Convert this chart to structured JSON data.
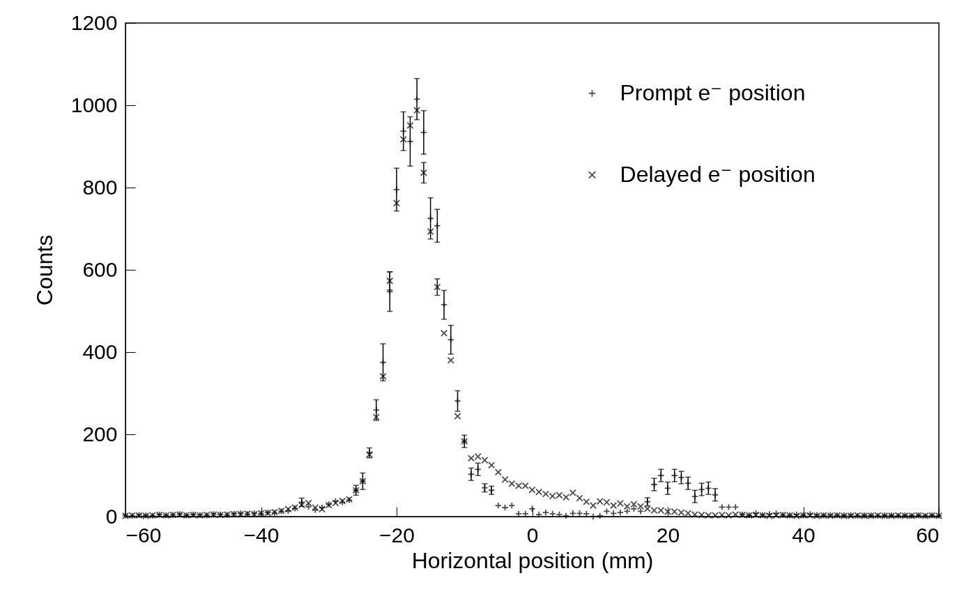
{
  "chart_data": {
    "type": "scatter",
    "xlabel": "Horizontal position (mm)",
    "ylabel": "Counts",
    "x": [
      -60,
      -59,
      -58,
      -57,
      -56,
      -55,
      -54,
      -53,
      -52,
      -51,
      -50,
      -49,
      -48,
      -47,
      -46,
      -45,
      -44,
      -43,
      -42,
      -41,
      -40,
      -39,
      -38,
      -37,
      -36,
      -35,
      -34,
      -33,
      -32,
      -31,
      -30,
      -29,
      -28,
      -27,
      -26,
      -25,
      -24,
      -23,
      -22,
      -21,
      -20,
      -19,
      -18,
      -17,
      -16,
      -15,
      -14,
      -13,
      -12,
      -11,
      -10,
      -9,
      -8,
      -7,
      -6,
      -5,
      -4,
      -3,
      -2,
      -1,
      0,
      1,
      2,
      3,
      4,
      5,
      6,
      7,
      8,
      9,
      10,
      11,
      12,
      13,
      14,
      15,
      16,
      17,
      18,
      19,
      20,
      21,
      22,
      23,
      24,
      25,
      26,
      27,
      28,
      29,
      30,
      31,
      32,
      33,
      34,
      35,
      36,
      37,
      38,
      39,
      40,
      41,
      42,
      43,
      44,
      45,
      46,
      47,
      48,
      49,
      50,
      51,
      52,
      53,
      54,
      55,
      56,
      57,
      58,
      59,
      60
    ],
    "series": [
      {
        "name": "Prompt e⁻ position",
        "color": "#000000",
        "marker": "plus",
        "values": [
          3,
          2,
          4,
          3,
          2,
          5,
          3,
          4,
          6,
          3,
          5,
          4,
          3,
          6,
          5,
          4,
          7,
          8,
          6,
          8,
          7,
          10,
          9,
          13,
          14,
          20,
          35,
          24,
          16,
          22,
          30,
          38,
          35,
          40,
          64,
          86,
          155,
          259,
          375,
          547,
          795,
          937,
          912,
          1015,
          934,
          725,
          707,
          515,
          430,
          281,
          183,
          103,
          115,
          70,
          64,
          27,
          22,
          27,
          7,
          7,
          19,
          5,
          10,
          7,
          5,
          2,
          8,
          8,
          7,
          0,
          2,
          13,
          8,
          10,
          13,
          19,
          13,
          36,
          78,
          100,
          69,
          100,
          95,
          81,
          49,
          66,
          69,
          53,
          23,
          23,
          23,
          5,
          3,
          8,
          4,
          6,
          8,
          4,
          3,
          5,
          3,
          6,
          4,
          3,
          4,
          3,
          3,
          4,
          2,
          3,
          3,
          2,
          3,
          3,
          2,
          3,
          2,
          3,
          2,
          3,
          2
        ],
        "errors": [
          null,
          null,
          null,
          null,
          null,
          null,
          null,
          null,
          null,
          null,
          null,
          null,
          null,
          null,
          null,
          null,
          null,
          null,
          null,
          null,
          null,
          null,
          null,
          null,
          null,
          null,
          10,
          null,
          null,
          null,
          null,
          null,
          null,
          null,
          12,
          20,
          12,
          25,
          45,
          48,
          52,
          47,
          60,
          50,
          53,
          50,
          40,
          35,
          35,
          25,
          15,
          15,
          15,
          10,
          10,
          null,
          null,
          null,
          null,
          null,
          null,
          null,
          null,
          null,
          null,
          null,
          null,
          null,
          null,
          null,
          null,
          null,
          null,
          null,
          null,
          null,
          null,
          10,
          15,
          15,
          15,
          15,
          15,
          15,
          15,
          15,
          15,
          15,
          null,
          null,
          null,
          null,
          null,
          null,
          null,
          null,
          null,
          null,
          null,
          null,
          null,
          null,
          null,
          null,
          null,
          null,
          null,
          null,
          null,
          null,
          null,
          null,
          null,
          null,
          null,
          null,
          null,
          null,
          null,
          null,
          null
        ]
      },
      {
        "name": "Delayed e⁻ position",
        "color": "#000000",
        "marker": "cross",
        "values": [
          2,
          3,
          3,
          2,
          3,
          4,
          3,
          4,
          5,
          3,
          4,
          3,
          4,
          5,
          4,
          5,
          6,
          6,
          7,
          6,
          8,
          9,
          11,
          14,
          18,
          22,
          28,
          33,
          22,
          18,
          28,
          33,
          38,
          42,
          64,
          86,
          151,
          242,
          341,
          573,
          762,
          917,
          951,
          988,
          836,
          693,
          558,
          446,
          380,
          244,
          183,
          142,
          146,
          137,
          125,
          108,
          90,
          80,
          75,
          75,
          65,
          60,
          55,
          50,
          52,
          47,
          58,
          45,
          36,
          27,
          37,
          35,
          27,
          32,
          25,
          30,
          25,
          19,
          15,
          15,
          12,
          12,
          10,
          8,
          5,
          4,
          3,
          3,
          4,
          3,
          5,
          4,
          3,
          4,
          3,
          2,
          3,
          4,
          3,
          2,
          3,
          3,
          2,
          3,
          2,
          3,
          2,
          2,
          3,
          2,
          2,
          3,
          2,
          2,
          3,
          2,
          2,
          3,
          2,
          3,
          2
        ],
        "errors": [
          null,
          null,
          null,
          null,
          null,
          null,
          null,
          null,
          null,
          null,
          null,
          null,
          null,
          null,
          null,
          null,
          null,
          null,
          null,
          null,
          null,
          null,
          null,
          null,
          null,
          null,
          null,
          null,
          null,
          null,
          null,
          null,
          null,
          null,
          null,
          null,
          null,
          null,
          null,
          22,
          null,
          null,
          null,
          null,
          25,
          null,
          20,
          null,
          null,
          null,
          null,
          null,
          null,
          null,
          null,
          null,
          null,
          null,
          null,
          null,
          null,
          null,
          null,
          null,
          null,
          null,
          null,
          null,
          null,
          null,
          null,
          null,
          null,
          null,
          null,
          null,
          null,
          null,
          null,
          null,
          null,
          null,
          null,
          null,
          null,
          null,
          null,
          null,
          null,
          null,
          null,
          null,
          null,
          null,
          null,
          null,
          null,
          null,
          null,
          null,
          null,
          null,
          null,
          null,
          null,
          null,
          null,
          null,
          null,
          null,
          null,
          null,
          null,
          null,
          null,
          null,
          null,
          null,
          null,
          null,
          null
        ]
      }
    ],
    "xlim": [
      -60,
      60
    ],
    "xticks": [
      -60,
      -40,
      -20,
      0,
      20,
      40,
      60
    ],
    "ylim": [
      0,
      1200
    ],
    "yticks": [
      0,
      200,
      400,
      600,
      800,
      1000,
      1200
    ],
    "grid": false,
    "legend": "top right"
  }
}
